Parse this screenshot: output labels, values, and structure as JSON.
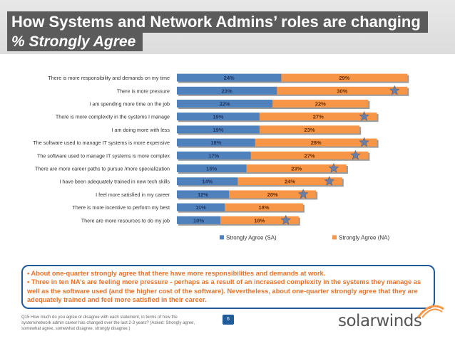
{
  "slide": {
    "title": "How Systems and Network Admins’ roles are changing",
    "subtitle": "% Strongly Agree",
    "page_number": "6",
    "callout": [
      "• About one-quarter strongly agree that there have more responsibilities and demands at work.",
      "• Three in ten NA’s are feeling more pressure - perhaps as a result of an increased complexity in the systems they manage as well as the software used (and the higher cost of the software). Nevertheless, about one-quarter strongly agree that they are adequately trained and feel more satisfied in their career."
    ],
    "footnote": "Q15 How much do you agree or disagree with each statement, in terms of how the system/network admin career has changed over the last 2-3 years? (Asked: Strongly agree, somewhat agree, somewhat disagree, strongly disagree.)",
    "logo_text": "solarwinds"
  },
  "colors": {
    "sa": "#4f81bd",
    "na": "#f79646",
    "star": "#6b7ea6",
    "callout_border": "#1f5c99",
    "callout_text": "#e8722a"
  },
  "chart_data": {
    "type": "bar",
    "orientation": "horizontal",
    "stacked": true,
    "categories": [
      "There is more responsibility and demands on my time",
      "There is more pressure",
      "I am spending more time on the job",
      "There is more complexity in the systems I manage",
      "I am doing more with less",
      "The software used to manage IT systems is more expensive",
      "The software used to manage IT systems is more complex",
      "There are more career paths to pursue /more specialization",
      "I have been adequately trained in new tech skills",
      "I feel more satisfied in my career",
      "There is more incentive to perform my best",
      "There are more resources to do my job"
    ],
    "series": [
      {
        "name": "Strongly Agree (SA)",
        "values": [
          24,
          23,
          22,
          19,
          19,
          18,
          17,
          16,
          14,
          12,
          11,
          10
        ],
        "labels": [
          "24%",
          "23%",
          "22%",
          "19%",
          "19%",
          "18%",
          "17%",
          "16%",
          "14%",
          "12%",
          "11%",
          "10%"
        ]
      },
      {
        "name": "Strongly Agree (NA)",
        "values": [
          29,
          30,
          22,
          27,
          23,
          28,
          27,
          23,
          24,
          20,
          18,
          18
        ],
        "labels": [
          "29%",
          "30%",
          "22%",
          "27%",
          "23%",
          "28%",
          "27%",
          "23%",
          "24%",
          "20%",
          "18%",
          "18%"
        ]
      }
    ],
    "highlighted": [
      false,
      true,
      false,
      true,
      false,
      true,
      true,
      true,
      true,
      true,
      false,
      true
    ],
    "legend_position": "bottom",
    "grid": false
  }
}
